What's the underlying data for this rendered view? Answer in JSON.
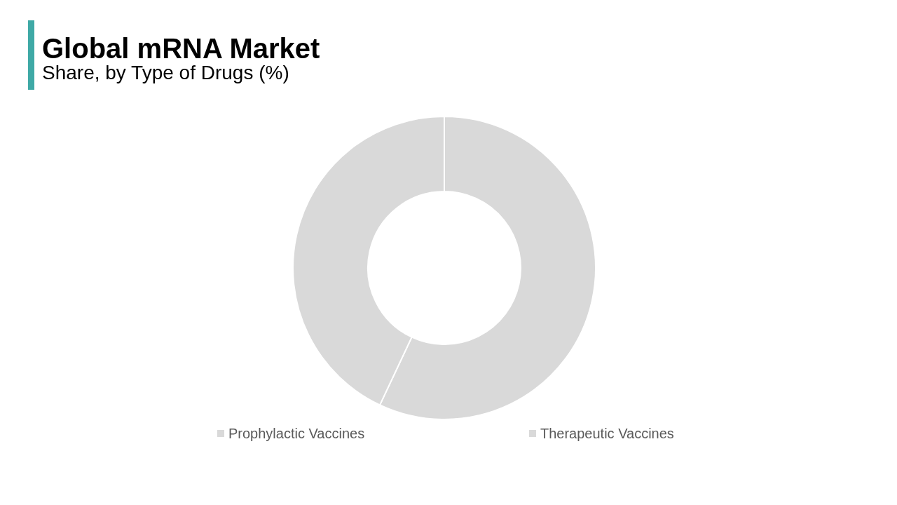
{
  "chart_data": {
    "type": "donut",
    "title": "Global mRNA Market",
    "subtitle": "Share, by Type of Drugs (%)",
    "categories": [
      "Prophylactic Vaccines",
      "Therapeutic Vaccines"
    ],
    "values": [
      57,
      43
    ],
    "colors": [
      "#d9d9d9",
      "#d9d9d9"
    ],
    "legend": "bottom"
  }
}
